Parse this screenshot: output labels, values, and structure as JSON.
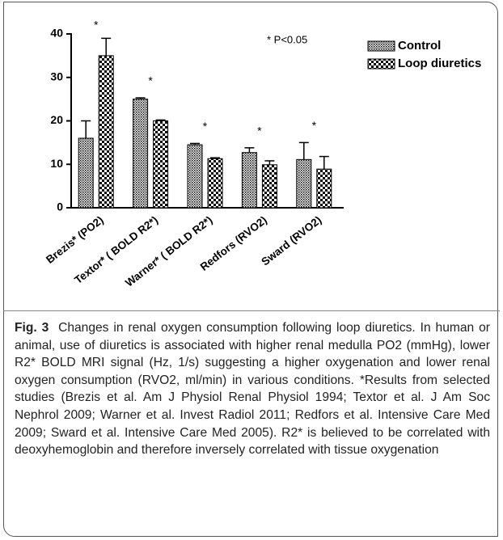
{
  "chart_data": {
    "type": "bar",
    "categories": [
      "Brezis* (PO2)",
      "Textor* ( BOLD R2*)",
      "Warner* ( BOLD R2*)",
      "Redfors (RVO2)",
      "Sward (RVO2)"
    ],
    "series": [
      {
        "name": "Control",
        "color": "#000000",
        "pattern": "dots",
        "values": [
          16,
          25,
          14.5,
          12.7,
          11.1
        ],
        "errors": [
          4,
          0.3,
          0.3,
          1.1,
          3.9
        ]
      },
      {
        "name": "Loop diuretics",
        "color": "#000000",
        "pattern": "checker",
        "values": [
          35,
          20,
          11.3,
          9.9,
          8.9
        ],
        "errors": [
          4,
          0.2,
          0.2,
          0.9,
          2.9
        ]
      }
    ],
    "significance_marks": [
      "*",
      "*",
      "*",
      "*",
      "*"
    ],
    "annotation": "* P<0.05",
    "ylim": [
      0,
      40
    ],
    "yticks": [
      0,
      10,
      20,
      30,
      40
    ],
    "grid": false,
    "legend": "top-right"
  },
  "caption": {
    "label": "Fig. 3",
    "text": "Changes in renal oxygen consumption following loop diuretics. In human or animal, use of diuretics is associated with higher renal medulla PO2 (mmHg), lower R2* BOLD MRI signal (Hz, 1/s) suggesting a higher oxygenation and lower renal oxygen consumption (RVO2, ml/min) in various conditions. *Results from selected studies (Brezis et al. Am J Physiol Renal Physiol 1994; Textor et al. J Am Soc Nephrol 2009; Warner et al. Invest Radiol 2011; Redfors et al. Intensive Care Med 2009; Sward et al. Intensive Care Med 2005). R2* is believed to be correlated with deoxyhemoglobin and therefore inversely correlated with tissue oxygenation"
  }
}
